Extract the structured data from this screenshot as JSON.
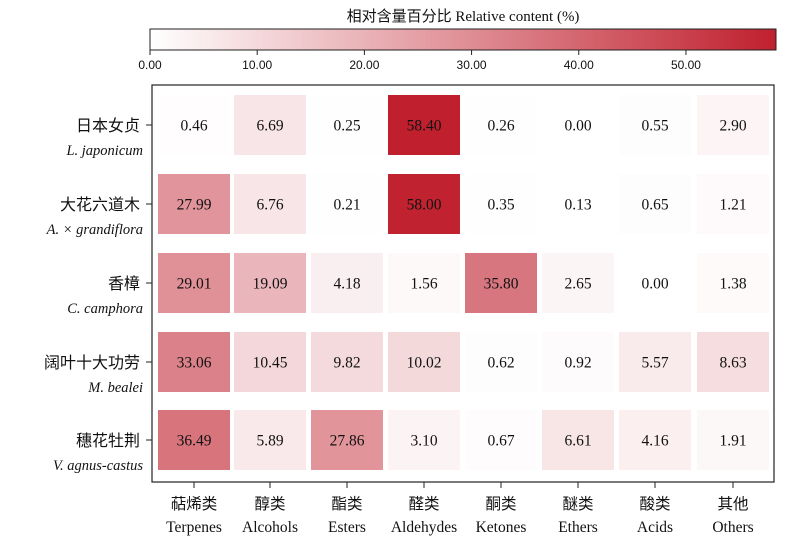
{
  "chart_data": {
    "type": "heatmap",
    "colorbar": {
      "title": "相对含量百分比  Relative content (%)",
      "min": 0,
      "max": 58.4,
      "ticks": [
        0,
        10,
        20,
        30,
        40,
        50
      ],
      "tick_labels": [
        "0.00",
        "10.00",
        "20.00",
        "30.00",
        "40.00",
        "50.00"
      ],
      "color_low": "#ffffff",
      "color_high": "#c0202e"
    },
    "columns": [
      {
        "zh": "萜烯类",
        "en": "Terpenes"
      },
      {
        "zh": "醇类",
        "en": "Alcohols"
      },
      {
        "zh": "酯类",
        "en": "Esters"
      },
      {
        "zh": "醛类",
        "en": "Aldehydes"
      },
      {
        "zh": "酮类",
        "en": "Ketones"
      },
      {
        "zh": "醚类",
        "en": "Ethers"
      },
      {
        "zh": "酸类",
        "en": "Acids"
      },
      {
        "zh": "其他",
        "en": "Others"
      }
    ],
    "rows": [
      {
        "zh": "日本女贞",
        "en": "L. japonicum",
        "values": [
          0.46,
          6.69,
          0.25,
          58.4,
          0.26,
          0.0,
          0.55,
          2.9
        ],
        "labels": [
          "0.46",
          "6.69",
          "0.25",
          "58.40",
          "0.26",
          "0.00",
          "0.55",
          "2.90"
        ]
      },
      {
        "zh": "大花六道木",
        "en": "A. × grandiflora",
        "values": [
          27.99,
          6.76,
          0.21,
          58.0,
          0.35,
          0.13,
          0.65,
          1.21
        ],
        "labels": [
          "27.99",
          "6.76",
          "0.21",
          "58.00",
          "0.35",
          "0.13",
          "0.65",
          "1.21"
        ]
      },
      {
        "zh": "香樟",
        "en": "C. camphora",
        "values": [
          29.01,
          19.09,
          4.18,
          1.56,
          35.8,
          2.65,
          0.0,
          1.38
        ],
        "labels": [
          "29.01",
          "19.09",
          "4.18",
          "1.56",
          "35.80",
          "2.65",
          "0.00",
          "1.38"
        ]
      },
      {
        "zh": "阔叶十大功劳",
        "en": "M. bealei",
        "values": [
          33.06,
          10.45,
          9.82,
          10.02,
          0.62,
          0.92,
          5.57,
          8.63
        ],
        "labels": [
          "33.06",
          "10.45",
          "9.82",
          "10.02",
          "0.62",
          "0.92",
          "5.57",
          "8.63"
        ]
      },
      {
        "zh": "穗花牡荆",
        "en": "V. agnus-castus",
        "values": [
          36.49,
          5.89,
          27.86,
          3.1,
          0.67,
          6.61,
          4.16,
          1.91
        ],
        "labels": [
          "36.49",
          "5.89",
          "27.86",
          "3.10",
          "0.67",
          "6.61",
          "4.16",
          "1.91"
        ]
      }
    ]
  }
}
